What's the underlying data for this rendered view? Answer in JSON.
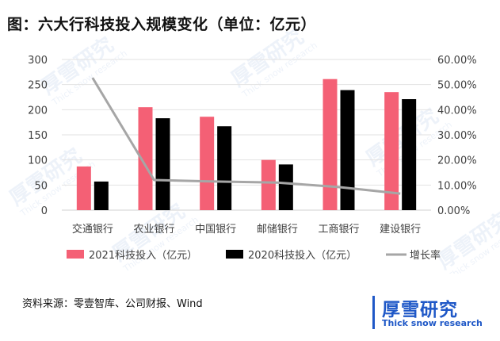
{
  "title": "图：六大行科技投入规模变化（单位：亿元）",
  "source": "资料来源：零壹智库、公司财报、Wind",
  "logo": {
    "name": "厚雪研究",
    "tagline": "Thick snow research"
  },
  "watermark": {
    "name": "厚雪研究",
    "tagline": "Thick snow research"
  },
  "colors": {
    "series_2021": "#f46075",
    "series_2020": "#000000",
    "growth": "#a6a6a6",
    "brand": "#1f58c7"
  },
  "chart_data": {
    "type": "bar",
    "categories": [
      "交通银行",
      "农业银行",
      "中国银行",
      "邮储银行",
      "工商银行",
      "建设银行"
    ],
    "series": [
      {
        "name": "2021科技投入（亿元）",
        "type": "bar",
        "axis": "left",
        "values": [
          87,
          205,
          186,
          100,
          261,
          235
        ]
      },
      {
        "name": "2020科技投入（亿元）",
        "type": "bar",
        "axis": "left",
        "values": [
          57,
          183,
          167,
          91,
          239,
          221
        ]
      },
      {
        "name": "增长率",
        "type": "line",
        "axis": "right",
        "values": [
          0.527,
          0.12,
          0.114,
          0.11,
          0.092,
          0.066
        ]
      }
    ],
    "y_left": {
      "min": 0,
      "max": 300,
      "ticks": [
        "0",
        "50",
        "100",
        "150",
        "200",
        "250",
        "300"
      ]
    },
    "y_right": {
      "min": 0,
      "max": 0.6,
      "ticks": [
        "0.00%",
        "10.00%",
        "20.00%",
        "30.00%",
        "40.00%",
        "50.00%",
        "60.00%"
      ]
    },
    "grid": true,
    "legend_position": "bottom"
  }
}
